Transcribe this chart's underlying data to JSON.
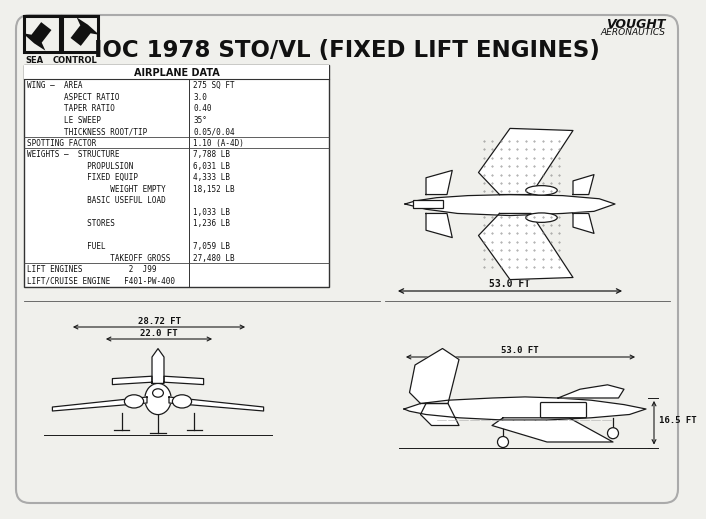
{
  "bg_color": "#f0f0ec",
  "title": "IOC 1978 STO/VL (FIXED LIFT ENGINES)",
  "table_header": "AIRPLANE DATA",
  "dim_front_span": "28.72 FT",
  "dim_front_inner": "22.0 FT",
  "dim_top_length": "53.0 FT",
  "dim_side_height": "16.5 FT",
  "line_color": "#1a1a1a",
  "text_color": "#111111",
  "white": "#ffffff",
  "table_rows": [
    [
      "WING –  AREA",
      "275 SQ FT",
      false
    ],
    [
      "        ASPECT RATIO",
      "3.0",
      false
    ],
    [
      "        TAPER RATIO",
      "0.40",
      false
    ],
    [
      "        LE SWEEP",
      "35°",
      false
    ],
    [
      "        THICKNESS ROOT/TIP",
      "0.05/0.04",
      true
    ],
    [
      "SPOTTING FACTOR",
      "1.10 (A-4D)",
      true
    ],
    [
      "WEIGHTS –  STRUCTURE",
      "7,788 LB",
      false
    ],
    [
      "             PROPULSION",
      "6,031 LB",
      false
    ],
    [
      "             FIXED EQUIP",
      "4,333 LB",
      false
    ],
    [
      "                  WEIGHT EMPTY",
      "18,152 LB",
      false
    ],
    [
      "             BASIC USEFUL LOAD",
      "",
      false
    ],
    [
      "",
      "1,033 LB",
      false
    ],
    [
      "             STORES",
      "1,236 LB",
      false
    ],
    [
      "",
      "",
      false
    ],
    [
      "             FUEL",
      "7,059 LB",
      false
    ],
    [
      "                  TAKEOFF GROSS",
      "27,480 LB",
      true
    ],
    [
      "LIFT ENGINES          2  J99",
      "",
      false
    ],
    [
      "LIFT/CRUISE ENGINE   F401-PW-400",
      "",
      false
    ]
  ]
}
